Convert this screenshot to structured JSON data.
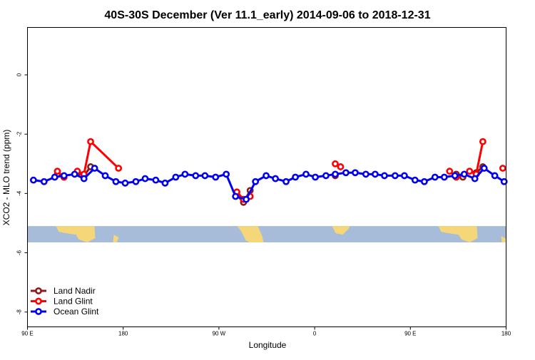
{
  "chart_data": {
    "type": "line",
    "title": "40S-30S December (Ver 11.1_early)   2014-09-06 to 2018-12-31",
    "xlabel": "Longitude",
    "ylabel": "XCO2 - MLO trend (ppm)",
    "xlim": [
      90,
      450
    ],
    "ylim": [
      -8.5,
      1.6
    ],
    "x_ticks": [
      {
        "value": 90,
        "label": "90 E"
      },
      {
        "value": 162,
        "label": "180"
      },
      {
        "value": 234,
        "label": "90 W"
      },
      {
        "value": 306,
        "label": "0"
      },
      {
        "value": 378,
        "label": "90 E"
      },
      {
        "value": 450,
        "label": "180"
      }
    ],
    "y_ticks": [
      {
        "value": 0,
        "label": "0"
      },
      {
        "value": -2,
        "label": "-2"
      },
      {
        "value": -4,
        "label": "-4"
      },
      {
        "value": -6,
        "label": "-6"
      },
      {
        "value": -8,
        "label": "-8"
      }
    ],
    "map_band": {
      "ymin": -5.65,
      "ymax": -5.1,
      "ocean_color": "#a7bcd9",
      "land_color": "#f5d77a"
    },
    "legend_position": "bottom-left",
    "series": [
      {
        "name": "Land Nadir",
        "color": "#8b1a1a",
        "segments": [
          [
            {
              "x": 112.5,
              "y": -3.35
            },
            {
              "x": 117.5,
              "y": -3.45
            }
          ],
          [
            {
              "x": 127.5,
              "y": -3.3
            },
            {
              "x": 132.5,
              "y": -3.4
            },
            {
              "x": 137.5,
              "y": -3.1
            }
          ],
          [
            {
              "x": 247.5,
              "y": -4.05
            },
            {
              "x": 252.5,
              "y": -4.3
            },
            {
              "x": 257.5,
              "y": -3.9
            }
          ],
          [
            {
              "x": 321.5,
              "y": -3.4
            }
          ],
          [
            {
              "x": 412.5,
              "y": -3.35
            },
            {
              "x": 417.5,
              "y": -3.45
            }
          ],
          [
            {
              "x": 427.5,
              "y": -3.3
            },
            {
              "x": 432.5,
              "y": -3.1
            }
          ]
        ]
      },
      {
        "name": "Land Glint",
        "color": "#ff0000",
        "segments": [
          [
            {
              "x": 112.5,
              "y": -3.25
            },
            {
              "x": 117.5,
              "y": -3.45
            }
          ],
          [
            {
              "x": 127.5,
              "y": -3.25
            },
            {
              "x": 132.5,
              "y": -3.35
            },
            {
              "x": 137.5,
              "y": -2.25
            },
            {
              "x": 158.5,
              "y": -3.15
            }
          ],
          [
            {
              "x": 247.5,
              "y": -3.95
            },
            {
              "x": 252.5,
              "y": -4.2
            },
            {
              "x": 257.5,
              "y": -4.1
            }
          ],
          [
            {
              "x": 321.5,
              "y": -3.0
            },
            {
              "x": 325.5,
              "y": -3.1
            }
          ],
          [
            {
              "x": 407.5,
              "y": -3.25
            },
            {
              "x": 412.5,
              "y": -3.45
            },
            {
              "x": 422.5,
              "y": -3.25
            },
            {
              "x": 427.5,
              "y": -3.35
            },
            {
              "x": 432.5,
              "y": -2.25
            }
          ],
          [
            {
              "x": 447.5,
              "y": -3.15
            }
          ]
        ]
      },
      {
        "name": "Ocean Glint",
        "color": "#0000ee",
        "segments": [
          [
            {
              "x": 94.5,
              "y": -3.55
            },
            {
              "x": 102.5,
              "y": -3.6
            },
            {
              "x": 110.5,
              "y": -3.45
            },
            {
              "x": 117.5,
              "y": -3.4
            },
            {
              "x": 125.5,
              "y": -3.35
            },
            {
              "x": 132.5,
              "y": -3.5
            },
            {
              "x": 140.5,
              "y": -3.15
            },
            {
              "x": 148.5,
              "y": -3.4
            },
            {
              "x": 156.5,
              "y": -3.6
            },
            {
              "x": 163.5,
              "y": -3.65
            },
            {
              "x": 171.5,
              "y": -3.6
            },
            {
              "x": 178.5,
              "y": -3.5
            },
            {
              "x": 186.5,
              "y": -3.55
            },
            {
              "x": 193.5,
              "y": -3.65
            },
            {
              "x": 201.5,
              "y": -3.45
            },
            {
              "x": 208.5,
              "y": -3.35
            },
            {
              "x": 216.5,
              "y": -3.4
            },
            {
              "x": 223.5,
              "y": -3.4
            },
            {
              "x": 231.5,
              "y": -3.45
            },
            {
              "x": 239.5,
              "y": -3.35
            },
            {
              "x": 246.5,
              "y": -4.1
            },
            {
              "x": 254.5,
              "y": -4.2
            },
            {
              "x": 261.5,
              "y": -3.6
            },
            {
              "x": 269.5,
              "y": -3.4
            },
            {
              "x": 276.5,
              "y": -3.5
            },
            {
              "x": 284.5,
              "y": -3.6
            },
            {
              "x": 291.5,
              "y": -3.45
            },
            {
              "x": 299.5,
              "y": -3.35
            },
            {
              "x": 306.5,
              "y": -3.45
            },
            {
              "x": 314.5,
              "y": -3.4
            },
            {
              "x": 321.5,
              "y": -3.35
            },
            {
              "x": 329.5,
              "y": -3.3
            },
            {
              "x": 336.5,
              "y": -3.3
            },
            {
              "x": 344.5,
              "y": -3.35
            },
            {
              "x": 351.5,
              "y": -3.35
            },
            {
              "x": 358.5,
              "y": -3.4
            },
            {
              "x": 366.5,
              "y": -3.4
            },
            {
              "x": 373.5,
              "y": -3.4
            },
            {
              "x": 381.5,
              "y": -3.55
            },
            {
              "x": 388.5,
              "y": -3.6
            },
            {
              "x": 396.5,
              "y": -3.45
            },
            {
              "x": 403.5,
              "y": -3.45
            },
            {
              "x": 411.5,
              "y": -3.4
            },
            {
              "x": 418.5,
              "y": -3.35
            },
            {
              "x": 426.5,
              "y": -3.5
            },
            {
              "x": 433.5,
              "y": -3.15
            },
            {
              "x": 441.5,
              "y": -3.4
            },
            {
              "x": 448.5,
              "y": -3.6
            }
          ]
        ]
      }
    ]
  }
}
